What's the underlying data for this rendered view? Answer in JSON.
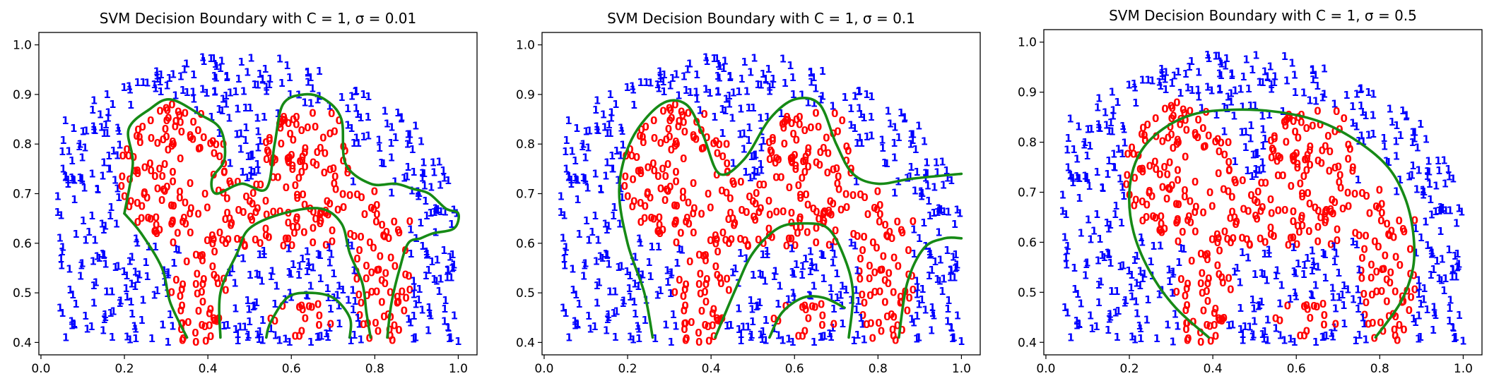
{
  "chart_data": [
    {
      "type": "scatter",
      "title": "SVM Decision Boundary with C = 1, σ = 0.01",
      "xlim": [
        -0.005,
        1.045
      ],
      "ylim": [
        0.375,
        1.025
      ],
      "xticks": [
        "0.0",
        "0.2",
        "0.4",
        "0.6",
        "0.8",
        "1.0"
      ],
      "xtick_values": [
        0.0,
        0.2,
        0.4,
        0.6,
        0.8,
        1.0
      ],
      "yticks": [
        "0.4",
        "0.5",
        "0.6",
        "0.7",
        "0.8",
        "0.9",
        "1.0"
      ],
      "ytick_values": [
        0.4,
        0.5,
        0.6,
        0.7,
        0.8,
        0.9,
        1.0
      ],
      "classes": [
        {
          "marker": "1",
          "color": "#0000ff"
        },
        {
          "marker": "0",
          "color": "#ff0000"
        }
      ],
      "boundary_color": "#168a16",
      "boundary": [
        [
          [
            0.2,
            0.66
          ],
          [
            0.22,
            0.76
          ],
          [
            0.21,
            0.83
          ],
          [
            0.26,
            0.87
          ],
          [
            0.31,
            0.89
          ],
          [
            0.38,
            0.86
          ],
          [
            0.43,
            0.83
          ],
          [
            0.44,
            0.77
          ],
          [
            0.41,
            0.73
          ],
          [
            0.42,
            0.7
          ],
          [
            0.48,
            0.72
          ],
          [
            0.54,
            0.71
          ],
          [
            0.56,
            0.8
          ],
          [
            0.58,
            0.88
          ],
          [
            0.63,
            0.9
          ],
          [
            0.68,
            0.89
          ],
          [
            0.72,
            0.85
          ],
          [
            0.73,
            0.76
          ],
          [
            0.79,
            0.72
          ],
          [
            0.85,
            0.72
          ],
          [
            0.89,
            0.71
          ],
          [
            0.93,
            0.7
          ],
          [
            0.97,
            0.67
          ],
          [
            1.0,
            0.66
          ],
          [
            0.99,
            0.63
          ],
          [
            0.94,
            0.62
          ],
          [
            0.91,
            0.61
          ],
          [
            0.88,
            0.6
          ],
          [
            0.86,
            0.55
          ],
          [
            0.84,
            0.48
          ],
          [
            0.83,
            0.41
          ]
        ],
        [
          [
            0.74,
            0.41
          ],
          [
            0.74,
            0.45
          ],
          [
            0.7,
            0.49
          ],
          [
            0.64,
            0.5
          ],
          [
            0.59,
            0.49
          ],
          [
            0.55,
            0.44
          ],
          [
            0.54,
            0.41
          ]
        ],
        [
          [
            0.43,
            0.41
          ],
          [
            0.43,
            0.5
          ],
          [
            0.47,
            0.58
          ],
          [
            0.5,
            0.63
          ],
          [
            0.58,
            0.66
          ],
          [
            0.67,
            0.67
          ],
          [
            0.72,
            0.64
          ],
          [
            0.74,
            0.58
          ],
          [
            0.77,
            0.52
          ],
          [
            0.78,
            0.46
          ],
          [
            0.79,
            0.41
          ]
        ],
        [
          [
            0.35,
            0.41
          ],
          [
            0.31,
            0.48
          ],
          [
            0.29,
            0.55
          ],
          [
            0.24,
            0.62
          ],
          [
            0.2,
            0.66
          ]
        ]
      ]
    },
    {
      "type": "scatter",
      "title": "SVM Decision Boundary with C = 1, σ = 0.1",
      "xlim": [
        -0.005,
        1.045
      ],
      "ylim": [
        0.375,
        1.025
      ],
      "xticks": [
        "0.0",
        "0.2",
        "0.4",
        "0.6",
        "0.8",
        "1.0"
      ],
      "xtick_values": [
        0.0,
        0.2,
        0.4,
        0.6,
        0.8,
        1.0
      ],
      "yticks": [
        "0.4",
        "0.5",
        "0.6",
        "0.7",
        "0.8",
        "0.9",
        "1.0"
      ],
      "ytick_values": [
        0.4,
        0.5,
        0.6,
        0.7,
        0.8,
        0.9,
        1.0
      ],
      "classes": [
        {
          "marker": "1",
          "color": "#0000ff"
        },
        {
          "marker": "0",
          "color": "#ff0000"
        }
      ],
      "boundary_color": "#168a16",
      "boundary": [
        [
          [
            0.26,
            0.41
          ],
          [
            0.24,
            0.5
          ],
          [
            0.2,
            0.6
          ],
          [
            0.18,
            0.71
          ],
          [
            0.21,
            0.81
          ],
          [
            0.28,
            0.88
          ],
          [
            0.34,
            0.88
          ],
          [
            0.38,
            0.82
          ],
          [
            0.42,
            0.74
          ],
          [
            0.48,
            0.77
          ],
          [
            0.54,
            0.85
          ],
          [
            0.6,
            0.89
          ],
          [
            0.66,
            0.88
          ],
          [
            0.7,
            0.8
          ],
          [
            0.74,
            0.74
          ],
          [
            0.8,
            0.72
          ],
          [
            0.88,
            0.73
          ],
          [
            1.0,
            0.74
          ]
        ],
        [
          [
            0.41,
            0.41
          ],
          [
            0.46,
            0.51
          ],
          [
            0.5,
            0.58
          ],
          [
            0.56,
            0.63
          ],
          [
            0.62,
            0.64
          ],
          [
            0.68,
            0.63
          ],
          [
            0.72,
            0.57
          ],
          [
            0.74,
            0.5
          ],
          [
            0.73,
            0.41
          ]
        ],
        [
          [
            0.54,
            0.41
          ],
          [
            0.57,
            0.46
          ],
          [
            0.62,
            0.49
          ],
          [
            0.67,
            0.49
          ],
          [
            0.72,
            0.47
          ]
        ],
        [
          [
            0.85,
            0.41
          ],
          [
            0.87,
            0.52
          ],
          [
            0.91,
            0.59
          ],
          [
            0.96,
            0.61
          ],
          [
            1.0,
            0.61
          ]
        ]
      ]
    },
    {
      "type": "scatter",
      "title": "SVM Decision Boundary with C = 1, σ = 0.5",
      "xlim": [
        -0.005,
        1.045
      ],
      "ylim": [
        0.375,
        1.025
      ],
      "xticks": [
        "0.0",
        "0.2",
        "0.4",
        "0.6",
        "0.8",
        "1.0"
      ],
      "xtick_values": [
        0.0,
        0.2,
        0.4,
        0.6,
        0.8,
        1.0
      ],
      "yticks": [
        "0.4",
        "0.5",
        "0.6",
        "0.7",
        "0.8",
        "0.9",
        "1.0"
      ],
      "ytick_values": [
        0.4,
        0.5,
        0.6,
        0.7,
        0.8,
        0.9,
        1.0
      ],
      "classes": [
        {
          "marker": "1",
          "color": "#0000ff"
        },
        {
          "marker": "0",
          "color": "#ff0000"
        }
      ],
      "boundary_color": "#168a16",
      "boundary": [
        [
          [
            0.39,
            0.41
          ],
          [
            0.31,
            0.47
          ],
          [
            0.25,
            0.54
          ],
          [
            0.21,
            0.62
          ],
          [
            0.2,
            0.7
          ],
          [
            0.22,
            0.77
          ],
          [
            0.27,
            0.82
          ],
          [
            0.35,
            0.855
          ],
          [
            0.45,
            0.865
          ],
          [
            0.56,
            0.86
          ],
          [
            0.66,
            0.84
          ],
          [
            0.75,
            0.8
          ],
          [
            0.82,
            0.75
          ],
          [
            0.86,
            0.69
          ],
          [
            0.88,
            0.62
          ],
          [
            0.88,
            0.55
          ],
          [
            0.85,
            0.48
          ],
          [
            0.79,
            0.41
          ]
        ]
      ]
    }
  ]
}
